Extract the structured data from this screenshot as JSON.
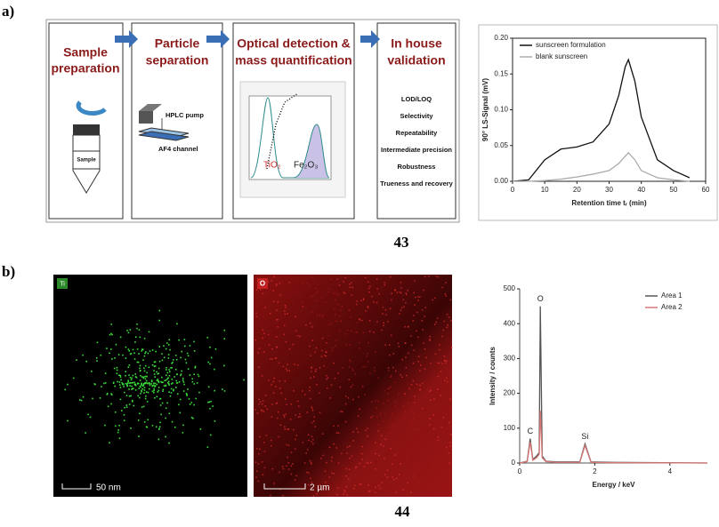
{
  "panel_a": {
    "label": "a)",
    "steps": [
      [
        "Sample",
        "preparation"
      ],
      [
        "Particle",
        "separation"
      ],
      [
        "Optical detection &",
        "mass quantification"
      ],
      [
        "In house",
        "validation"
      ]
    ],
    "sample_label": "Sample",
    "hplc_label": "HPLC pump",
    "af4_label": "AF4 channel",
    "inset_labels": [
      "TiO₂",
      "Fe₂O₃"
    ],
    "validation_items": [
      "LOD/LOQ",
      "Selectivity",
      "Repeatability",
      "Intermediate precision",
      "Robustness",
      "Trueness and recovery"
    ],
    "caption": "43"
  },
  "panel_b": {
    "label": "b)",
    "map_labels": [
      "Ti",
      "O"
    ],
    "scale_bars": [
      "50 nm",
      "2 µm"
    ],
    "caption": "44"
  },
  "chart_data": [
    {
      "type": "line",
      "y_label": "90° LS-Signal (mV)",
      "x_label": "Retention time tᵣ (min)",
      "legend": "upper left",
      "frame": true,
      "xlim": [
        0,
        60
      ],
      "xticks": [
        0,
        10,
        20,
        30,
        40,
        50,
        60
      ],
      "ylim": [
        0,
        0.2
      ],
      "yticks": [
        {
          "value": 0,
          "label": "0.00"
        },
        {
          "value": 0.05,
          "label": "0.05"
        },
        {
          "value": 0.1,
          "label": "0.10"
        },
        {
          "value": 0.15,
          "label": "0.15"
        },
        {
          "value": 0.2,
          "label": "0.20"
        }
      ],
      "series": [
        {
          "name": "sunscreen formulation",
          "color": "#111111",
          "x": [
            0,
            5,
            10,
            15,
            20,
            25,
            30,
            33,
            35,
            36,
            38,
            40,
            45,
            50,
            55
          ],
          "values": [
            0,
            0.002,
            0.03,
            0.045,
            0.048,
            0.055,
            0.08,
            0.12,
            0.16,
            0.17,
            0.14,
            0.09,
            0.03,
            0.015,
            0.005
          ]
        },
        {
          "name": "blank sunscreen",
          "color": "#aaaaaa",
          "x": [
            0,
            5,
            10,
            15,
            20,
            25,
            30,
            33,
            35,
            36,
            38,
            40,
            45,
            50,
            55
          ],
          "values": [
            0,
            0,
            0.001,
            0.003,
            0.006,
            0.01,
            0.015,
            0.025,
            0.035,
            0.04,
            0.03,
            0.015,
            0.005,
            0.002,
            0
          ]
        }
      ]
    },
    {
      "type": "line",
      "y_label": "Intensity / counts",
      "x_label": "Energy / keV",
      "legend": "upper right",
      "frame": false,
      "xlim": [
        0,
        5
      ],
      "xticks": [
        0,
        2,
        4
      ],
      "ylim": [
        0,
        500
      ],
      "yticks": [
        0,
        100,
        200,
        300,
        400,
        500
      ],
      "annotations": [
        {
          "text": "C",
          "x": 0.28,
          "y": 70
        },
        {
          "text": "O",
          "x": 0.55,
          "y": 450
        },
        {
          "text": "Si",
          "x": 1.74,
          "y": 55
        }
      ],
      "series": [
        {
          "name": "Area 1",
          "color": "#555555",
          "x": [
            0,
            0.2,
            0.28,
            0.35,
            0.45,
            0.52,
            0.55,
            0.6,
            0.7,
            1,
            1.6,
            1.74,
            1.9,
            2.5,
            5
          ],
          "values": [
            0,
            5,
            70,
            10,
            20,
            30,
            450,
            20,
            5,
            3,
            3,
            55,
            3,
            2,
            0
          ]
        },
        {
          "name": "Area 2",
          "color": "#d77777",
          "x": [
            0,
            0.2,
            0.28,
            0.35,
            0.45,
            0.52,
            0.55,
            0.6,
            0.7,
            1,
            1.6,
            1.74,
            1.9,
            2.5,
            5
          ],
          "values": [
            0,
            4,
            60,
            8,
            15,
            25,
            150,
            15,
            4,
            2,
            2,
            50,
            2,
            1,
            0
          ]
        }
      ]
    }
  ]
}
